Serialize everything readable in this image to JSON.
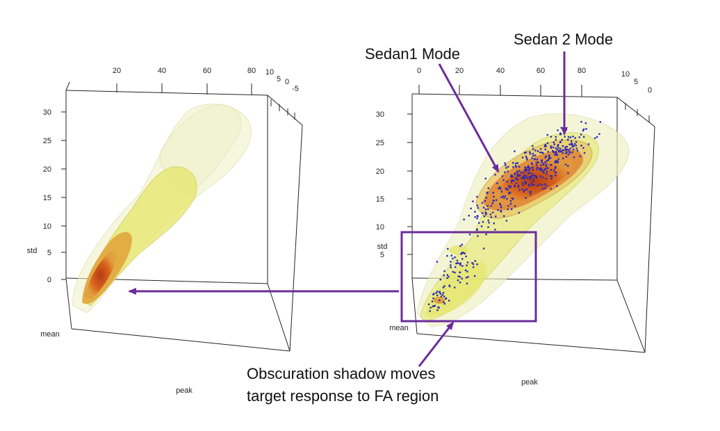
{
  "chart_data": [
    {
      "type": "3d-density",
      "panel": "left",
      "axes": {
        "peak": {
          "label": "peak",
          "ticks": [
            "20",
            "40",
            "60",
            "80"
          ]
        },
        "std": {
          "label": "std",
          "ticks": [
            "0",
            "5",
            "10",
            "15",
            "20",
            "25",
            "30"
          ]
        },
        "mean": {
          "label": "mean",
          "ticks": [
            "10",
            "5",
            "0",
            "-5"
          ]
        }
      },
      "colors": {
        "outer": "#eef0c2",
        "mid": "#e6e56a",
        "inner": "#e0a23a",
        "core": "#d05a1e"
      }
    },
    {
      "type": "3d-density",
      "panel": "right",
      "axes": {
        "peak": {
          "label": "peak",
          "ticks": [
            "0",
            "20",
            "40",
            "60",
            "80"
          ]
        },
        "std": {
          "label": "std",
          "ticks": [
            "5",
            "10",
            "15",
            "20",
            "25",
            "30"
          ]
        },
        "mean": {
          "label": "mean",
          "ticks": [
            "10",
            "5",
            "0"
          ]
        }
      },
      "samples_color": "#2a2ab8",
      "colors": {
        "outer": "#eef0c2",
        "mid": "#e6e56a",
        "inner": "#e0a23a",
        "core": "#d05a1e"
      }
    }
  ],
  "annotations": {
    "sedan1": "Sedan1 Mode",
    "sedan2": "Sedan 2 Mode",
    "obscuration_line1": "Obscuration shadow moves",
    "obscuration_line2": "target response to FA region"
  },
  "accent_color": "#6a2c9a"
}
